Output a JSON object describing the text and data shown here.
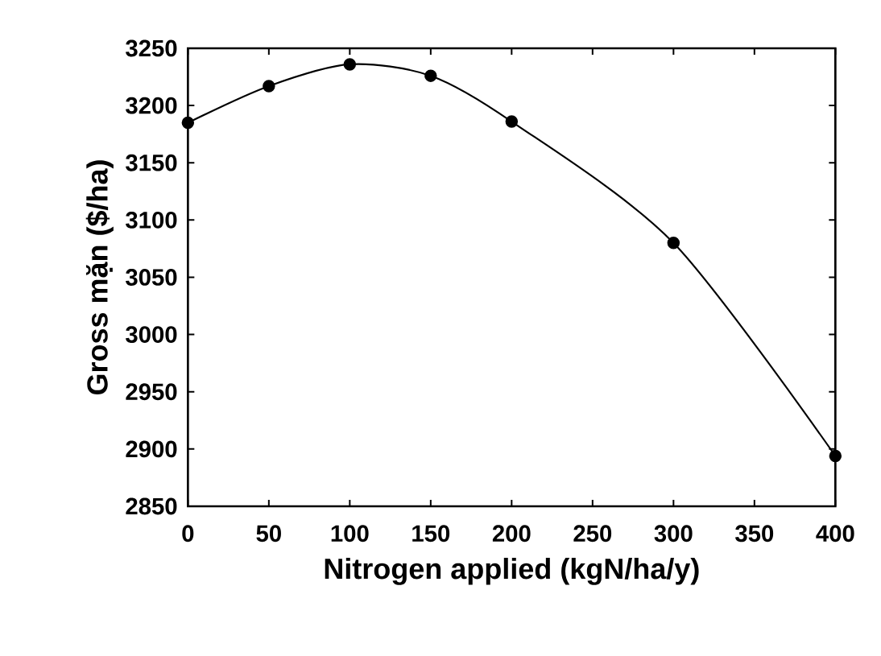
{
  "chart_data": {
    "type": "line",
    "xlabel": "Nitrogen applied  (kgN/ha/y)",
    "ylabel": "Gross mặn ($/ha)",
    "x": [
      0,
      50,
      100,
      150,
      200,
      300,
      400
    ],
    "series": [
      {
        "color": "#000000",
        "values": [
          3185,
          3217,
          3236,
          3226,
          3186,
          3080,
          2894
        ]
      }
    ],
    "xlim": [
      0,
      400
    ],
    "ylim": [
      2850,
      3250
    ],
    "xticks": [
      0,
      50,
      100,
      150,
      200,
      250,
      300,
      350,
      400
    ],
    "yticks": [
      2850,
      2900,
      2950,
      3000,
      3050,
      3100,
      3150,
      3200,
      3250
    ],
    "marker": "circle",
    "line_style": "solid"
  }
}
